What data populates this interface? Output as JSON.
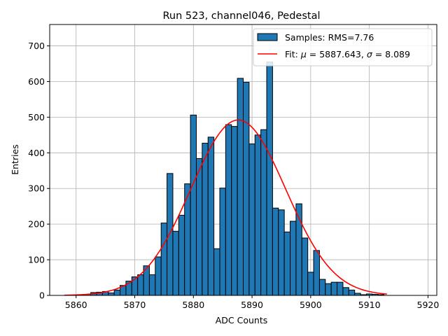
{
  "chart_data": {
    "type": "bar",
    "title": "Run 523, channel046, Pedestal",
    "xlabel": "ADC Counts",
    "ylabel": "Entries",
    "xlim": [
      5855.5,
      5921.5
    ],
    "ylim": [
      0,
      760
    ],
    "xticks": [
      5860,
      5870,
      5880,
      5890,
      5900,
      5910,
      5920
    ],
    "yticks": [
      0,
      100,
      200,
      300,
      400,
      500,
      600,
      700
    ],
    "grid": true,
    "legend_placement": "top-right",
    "bin_width": 1,
    "series": [
      {
        "name": "Samples: RMS=7.76",
        "type": "histogram",
        "color": "#1f77b4",
        "edgecolor": "#000000",
        "bins": [
          5862,
          5863,
          5864,
          5865,
          5866,
          5867,
          5868,
          5869,
          5870,
          5871,
          5872,
          5873,
          5874,
          5875,
          5876,
          5877,
          5878,
          5879,
          5880,
          5881,
          5882,
          5883,
          5884,
          5885,
          5886,
          5887,
          5888,
          5889,
          5890,
          5891,
          5892,
          5893,
          5894,
          5895,
          5896,
          5897,
          5898,
          5899,
          5900,
          5901,
          5902,
          5903,
          5904,
          5905,
          5906,
          5907,
          5908,
          5909,
          5910,
          5911,
          5912
        ],
        "values": [
          3,
          8,
          9,
          11,
          7,
          15,
          28,
          40,
          52,
          58,
          83,
          58,
          108,
          203,
          342,
          180,
          225,
          313,
          506,
          384,
          427,
          444,
          131,
          301,
          479,
          474,
          609,
          598,
          425,
          450,
          465,
          655,
          245,
          240,
          178,
          208,
          257,
          161,
          65,
          126,
          45,
          33,
          37,
          37,
          22,
          15,
          6,
          2,
          4,
          3,
          2
        ]
      },
      {
        "name": "Fit: $\\mu$ = 5887.643, $\\sigma$ = 8.089",
        "type": "gaussian",
        "color": "#ff0000",
        "mu": 5887.643,
        "sigma": 8.089,
        "amplitude": 492,
        "x_range": [
          5858,
          5913
        ]
      }
    ],
    "legend": {
      "entries": [
        {
          "label": "Samples: RMS=7.76"
        },
        {
          "prefix": "Fit: ",
          "mu_symbol": "μ",
          "mu_value": " = 5887.643, ",
          "sigma_symbol": "σ",
          "sigma_value": " = 8.089"
        }
      ]
    }
  }
}
